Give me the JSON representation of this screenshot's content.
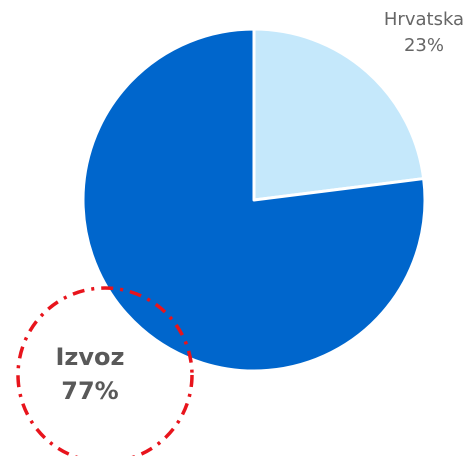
{
  "chart_data": {
    "type": "pie",
    "categories": [
      "Hrvatska",
      "Izvoz"
    ],
    "values": [
      23,
      77
    ],
    "value_labels": [
      "23%",
      "77%"
    ],
    "colors": [
      "#c5e8fb",
      "#0066cc"
    ]
  }
}
